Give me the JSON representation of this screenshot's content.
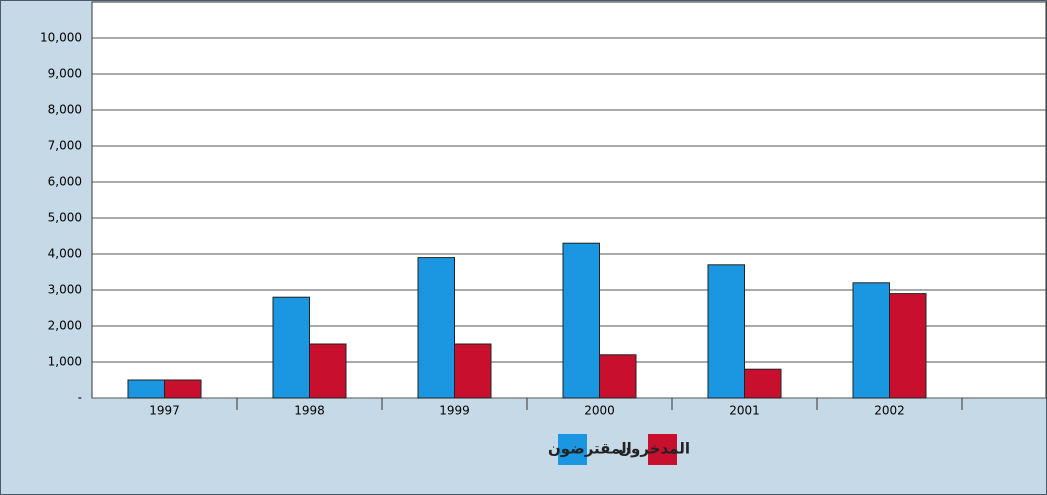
{
  "chart_data": {
    "type": "bar",
    "categories": [
      "1997",
      "1998",
      "1999",
      "2000",
      "2001",
      "2002"
    ],
    "series": [
      {
        "name": "المقترضون",
        "color": "#1a97e0",
        "values": [
          500,
          2800,
          3900,
          4300,
          3700,
          3200
        ]
      },
      {
        "name": "المدخرون",
        "color": "#c8102e",
        "values": [
          500,
          1500,
          1500,
          1200,
          800,
          2900
        ]
      }
    ],
    "ylim": [
      0,
      11000
    ],
    "yticks": [
      {
        "value": 0,
        "label": "-"
      },
      {
        "value": 1000,
        "label": "1,000"
      },
      {
        "value": 2000,
        "label": "2,000"
      },
      {
        "value": 3000,
        "label": "3,000"
      },
      {
        "value": 4000,
        "label": "4,000"
      },
      {
        "value": 5000,
        "label": "5,000"
      },
      {
        "value": 6000,
        "label": "6,000"
      },
      {
        "value": 7000,
        "label": "7,000"
      },
      {
        "value": 8000,
        "label": "8,000"
      },
      {
        "value": 9000,
        "label": "9,000"
      },
      {
        "value": 10000,
        "label": "10,000"
      }
    ],
    "grid": true
  }
}
